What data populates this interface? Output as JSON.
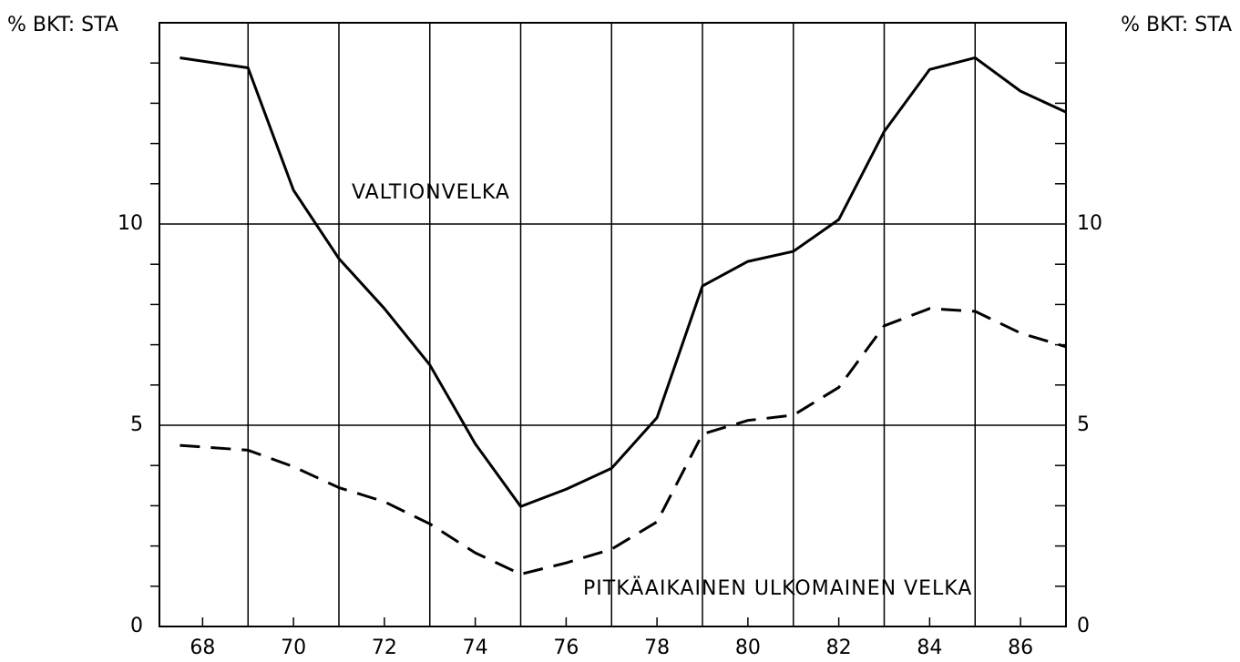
{
  "chart_data": {
    "type": "line",
    "ylabel": "% BKT: STA",
    "y2label": "% BKT: STA",
    "x": [
      67.5,
      69,
      70,
      71,
      72,
      73,
      74,
      75,
      76,
      77,
      78,
      79,
      80,
      81,
      82,
      83,
      84,
      85,
      86,
      87
    ],
    "series": [
      {
        "name": "VALTIONVELKA",
        "color": "#000000",
        "dash": "solid",
        "values": [
          14.13,
          13.88,
          10.84,
          9.14,
          7.9,
          6.5,
          4.54,
          2.98,
          3.41,
          3.93,
          5.19,
          8.46,
          9.07,
          9.32,
          10.11,
          12.3,
          13.84,
          14.13,
          13.3,
          12.78
        ]
      },
      {
        "name": "PITKÄAIKAINEN ULKOMAINEN VELKA",
        "color": "#000000",
        "dash": "dashed",
        "values": [
          4.5,
          4.38,
          3.97,
          3.45,
          3.1,
          2.55,
          1.83,
          1.3,
          1.58,
          1.92,
          2.6,
          4.78,
          5.12,
          5.25,
          5.94,
          7.47,
          7.9,
          7.83,
          7.29,
          6.95
        ]
      }
    ],
    "xlim": [
      67.05,
      87
    ],
    "xticks": [
      68,
      70,
      72,
      74,
      76,
      78,
      80,
      82,
      84,
      86
    ],
    "xgrid": [
      69,
      71,
      73,
      75,
      77,
      79,
      81,
      83,
      85
    ],
    "ylim": [
      0,
      15
    ],
    "yticks": [
      0,
      5,
      10
    ],
    "yminorticks": [
      1,
      2,
      3,
      4,
      6,
      7,
      8,
      9,
      11,
      12,
      13,
      14
    ],
    "grid": true
  }
}
